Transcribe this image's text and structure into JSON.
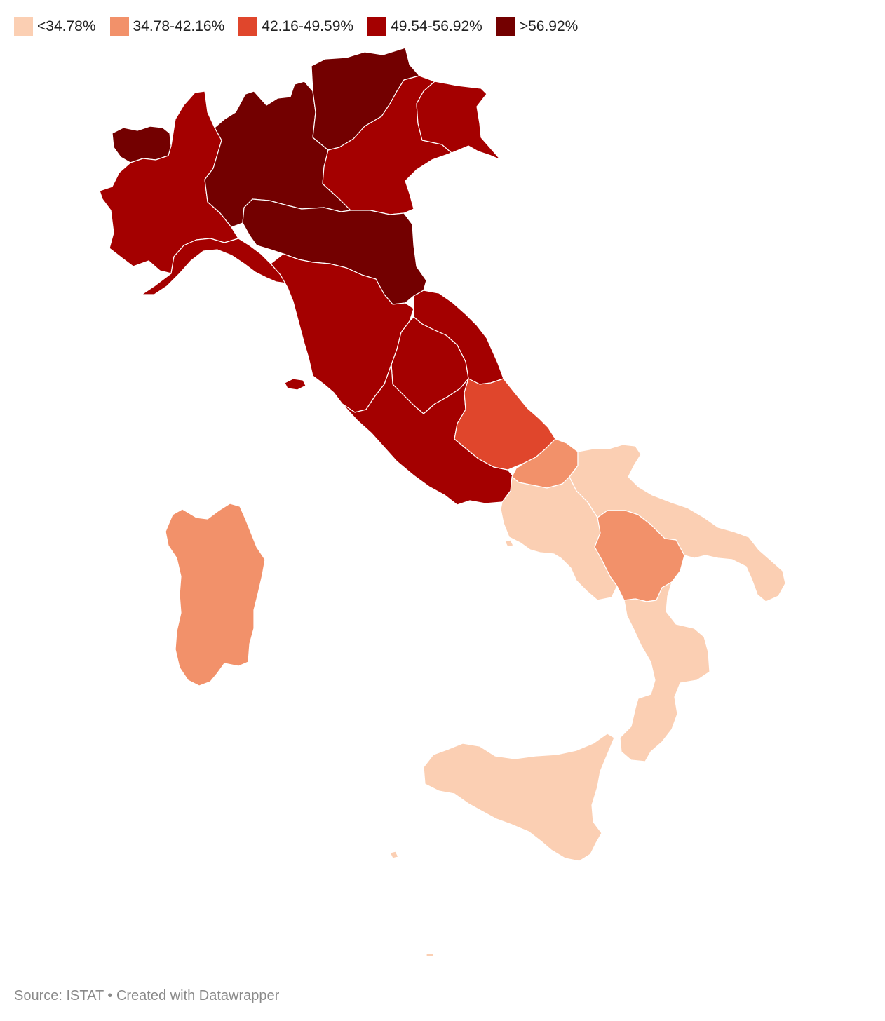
{
  "legend": {
    "items": [
      {
        "label": "<34.78%",
        "color": "#fbcfb3"
      },
      {
        "label": "34.78-42.16%",
        "color": "#f2916a"
      },
      {
        "label": "42.16-49.59%",
        "color": "#e0462c"
      },
      {
        "label": "49.54-56.92%",
        "color": "#a40000"
      },
      {
        "label": ">56.92%",
        "color": "#730000"
      }
    ]
  },
  "map": {
    "regions": [
      {
        "name": "Valle d'Aosta",
        "bin": 4
      },
      {
        "name": "Piemonte",
        "bin": 3
      },
      {
        "name": "Lombardia",
        "bin": 4
      },
      {
        "name": "Trentino-Alto Adige",
        "bin": 4
      },
      {
        "name": "Veneto",
        "bin": 3
      },
      {
        "name": "Friuli-Venezia Giulia",
        "bin": 3
      },
      {
        "name": "Liguria",
        "bin": 3
      },
      {
        "name": "Emilia-Romagna",
        "bin": 4
      },
      {
        "name": "Toscana",
        "bin": 3
      },
      {
        "name": "Umbria",
        "bin": 3
      },
      {
        "name": "Marche",
        "bin": 3
      },
      {
        "name": "Lazio",
        "bin": 3
      },
      {
        "name": "Abruzzo",
        "bin": 2
      },
      {
        "name": "Molise",
        "bin": 1
      },
      {
        "name": "Campania",
        "bin": 0
      },
      {
        "name": "Puglia",
        "bin": 0
      },
      {
        "name": "Basilicata",
        "bin": 1
      },
      {
        "name": "Calabria",
        "bin": 0
      },
      {
        "name": "Sicilia",
        "bin": 0
      },
      {
        "name": "Sardegna",
        "bin": 1
      }
    ]
  },
  "footer": {
    "source": "Source: ISTAT • Created with Datawrapper"
  }
}
